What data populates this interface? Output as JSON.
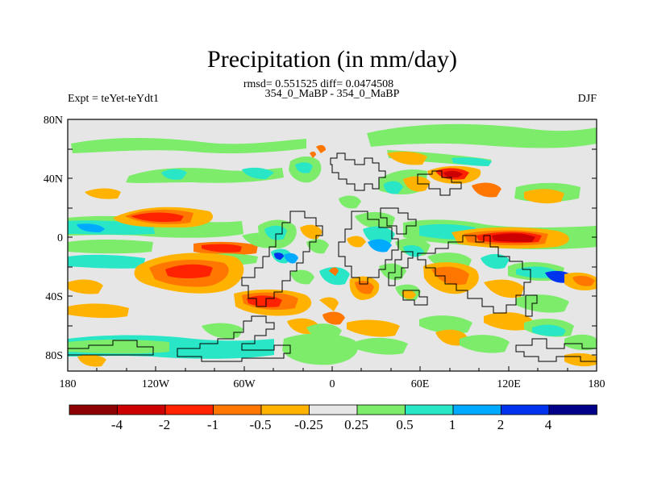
{
  "header": {
    "title": "Precipitation (in mm/day)",
    "stats_line": "rmsd= 0.551525 diff= 0.0474508",
    "case_line": "354_0_MaBP - 354_0_MaBP",
    "expt_label": "Expt = teYet-teYdt1",
    "season": "DJF"
  },
  "map": {
    "lat_ticks": [
      "80N",
      "40N",
      "0",
      "40S",
      "80S"
    ],
    "lon_ticks": [
      "180",
      "120W",
      "60W",
      "0",
      "60E",
      "120E",
      "180"
    ],
    "background_color": "#e6e6e6"
  },
  "colorbar": {
    "labels": [
      "-4",
      "-2",
      "-1",
      "-0.5",
      "-0.25",
      "0.25",
      "0.5",
      "1",
      "2",
      "4"
    ],
    "colors": [
      "#8b0000",
      "#cc0000",
      "#ff2200",
      "#ff7700",
      "#ffb300",
      "#e6e6e6",
      "#7cec6a",
      "#28e6c6",
      "#00aaff",
      "#0033ee",
      "#000088"
    ]
  }
}
